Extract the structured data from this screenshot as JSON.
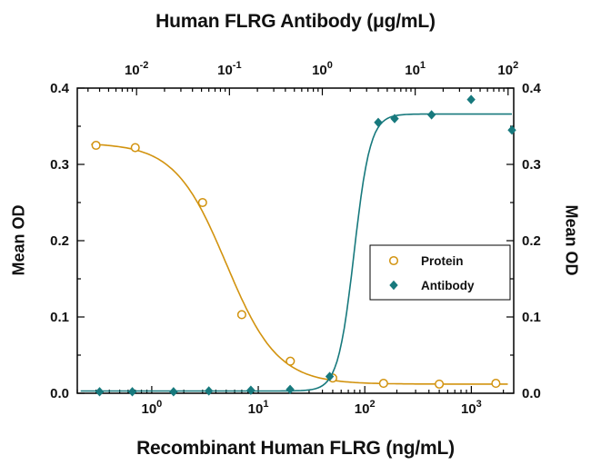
{
  "chart_data": {
    "type": "line",
    "y_axis": {
      "label": "Mean OD",
      "range": [
        0,
        0.4
      ],
      "major_tick_step": 0.1,
      "minor_tick_step": 0.05,
      "tick_labels": [
        "0.0",
        "0.1",
        "0.2",
        "0.3",
        "0.4"
      ]
    },
    "bottom_axis": {
      "label": "Recombinant Human FLRG (ng/mL)",
      "scale": "log",
      "range": [
        0.2,
        2500
      ],
      "tick_exponents": [
        0,
        1,
        2,
        3
      ]
    },
    "top_axis": {
      "label": "Human FLRG Antibody (μg/mL)",
      "scale": "log",
      "range": [
        0.0023,
        115
      ],
      "tick_exponents": [
        -2,
        -1,
        0,
        1,
        2
      ]
    },
    "legend": {
      "position": "middle-right",
      "border": true
    },
    "series": [
      {
        "name": "Protein",
        "axis": "bottom",
        "units": "ng/mL",
        "marker": "open-circle",
        "color": "#D2930F",
        "x": [
          0.3,
          0.7,
          3,
          7,
          20,
          50,
          150,
          500,
          1700
        ],
        "y": [
          0.325,
          0.322,
          0.25,
          0.103,
          0.042,
          0.02,
          0.013,
          0.012,
          0.013
        ],
        "fit": {
          "type": "4pl",
          "direction": "decreasing",
          "top": 0.328,
          "bottom": 0.012,
          "ec50": 5,
          "hill": 1.8,
          "draw_range": [
            0.27,
            2200
          ]
        }
      },
      {
        "name": "Antibody",
        "axis": "top",
        "units": "μg/mL",
        "marker": "filled-diamond",
        "color": "#17797D",
        "x": [
          0.004,
          0.009,
          0.025,
          0.06,
          0.17,
          0.45,
          1.2,
          4,
          6,
          15,
          40,
          110
        ],
        "y": [
          0.002,
          0.002,
          0.002,
          0.003,
          0.004,
          0.005,
          0.022,
          0.355,
          0.36,
          0.365,
          0.385,
          0.345
        ],
        "fit": {
          "type": "4pl",
          "direction": "increasing",
          "top": 0.366,
          "bottom": 0.003,
          "ec50": 2.2,
          "hill": 5,
          "draw_range": [
            0.0025,
            110
          ]
        }
      }
    ]
  }
}
